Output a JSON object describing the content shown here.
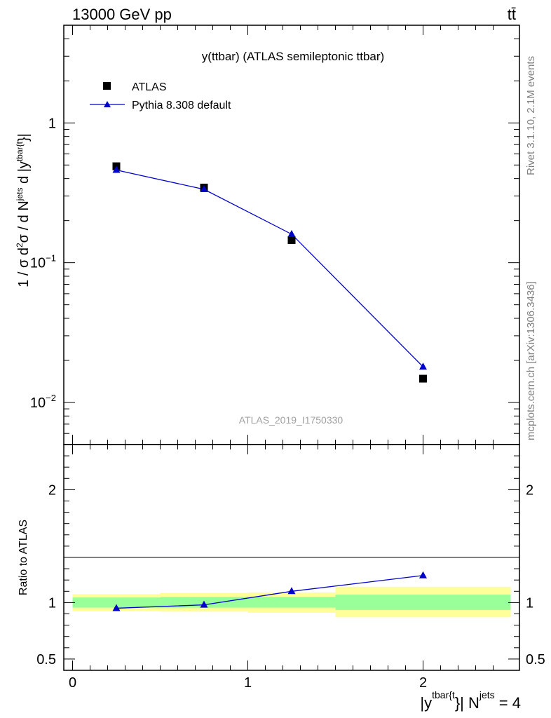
{
  "header": {
    "energy_label": "13000 GeV pp",
    "process_label": "tt̄"
  },
  "side_labels": {
    "rivet": "Rivet 3.1.10,  2.1M events",
    "mcplots": "mcplots.cern.ch [arXiv:1306.3436]"
  },
  "watermark": "ATLAS_2019_I1750330",
  "colors": {
    "data": "#000000",
    "mc": "#0000cc",
    "band_inner": "#99ff99",
    "band_outer": "#ffff99"
  },
  "chart_data": [
    {
      "type": "scatter",
      "title": "y(ttbar) (ATLAS semileptonic ttbar)",
      "ylabel": {
        "main": "1 / σ d",
        "sup1": "2",
        "mid1": "σ / d N",
        "sup2": "jets",
        "mid2": " d |y",
        "sup3": "tbar{t",
        "end": "}|"
      },
      "yscale": "log",
      "ylim": [
        0.005,
        5
      ],
      "yticks": [
        {
          "value": 1,
          "base": "1",
          "exp": ""
        },
        {
          "value": 0.1,
          "base": "10",
          "exp": "−1"
        },
        {
          "value": 0.01,
          "base": "10",
          "exp": "−2"
        }
      ],
      "legend": {
        "placement": "top-left",
        "entries": [
          {
            "name": "ATLAS",
            "marker": "square"
          },
          {
            "name": "Pythia 8.308 default",
            "marker": "triangle"
          }
        ]
      },
      "series": [
        {
          "name": "ATLAS",
          "x": [
            0.25,
            0.75,
            1.25,
            2.0
          ],
          "y": [
            0.49,
            0.345,
            0.145,
            0.0148
          ]
        },
        {
          "name": "Pythia 8.308 default",
          "x": [
            0.25,
            0.75,
            1.25,
            2.0
          ],
          "y": [
            0.46,
            0.335,
            0.16,
            0.018
          ]
        }
      ]
    },
    {
      "type": "line",
      "ylabel": "Ratio to ATLAS",
      "ylim": [
        0.4,
        2.4
      ],
      "yticks": [
        {
          "value": 0.5,
          "label": "0.5"
        },
        {
          "value": 1,
          "label": "1"
        },
        {
          "value": 2,
          "label": "2"
        }
      ],
      "xlim": [
        -0.05,
        2.55
      ],
      "xticks": [
        {
          "value": 0,
          "label": "0"
        },
        {
          "value": 1,
          "label": "1"
        },
        {
          "value": 2,
          "label": "2"
        }
      ],
      "xlabel": {
        "a": "|y",
        "sup1": "tbar{t",
        "b": "}| N",
        "sup2": "jets",
        "c": " = 4"
      },
      "bands": [
        {
          "x_low": 0,
          "x_high": 0.5,
          "inner": [
            0.955,
            1.045
          ],
          "outer": [
            0.925,
            1.075
          ]
        },
        {
          "x_low": 0.5,
          "x_high": 1.0,
          "inner": [
            0.955,
            1.05
          ],
          "outer": [
            0.92,
            1.085
          ]
        },
        {
          "x_low": 1.0,
          "x_high": 1.5,
          "inner": [
            0.955,
            1.05
          ],
          "outer": [
            0.91,
            1.09
          ]
        },
        {
          "x_low": 1.5,
          "x_high": 2.5,
          "inner": [
            0.935,
            1.07
          ],
          "outer": [
            0.87,
            1.14
          ]
        }
      ],
      "series": [
        {
          "name": "Pythia 8.308 default",
          "x": [
            0.25,
            0.75,
            1.25,
            2.0
          ],
          "y": [
            0.95,
            0.98,
            1.1,
            1.24
          ]
        }
      ]
    }
  ]
}
